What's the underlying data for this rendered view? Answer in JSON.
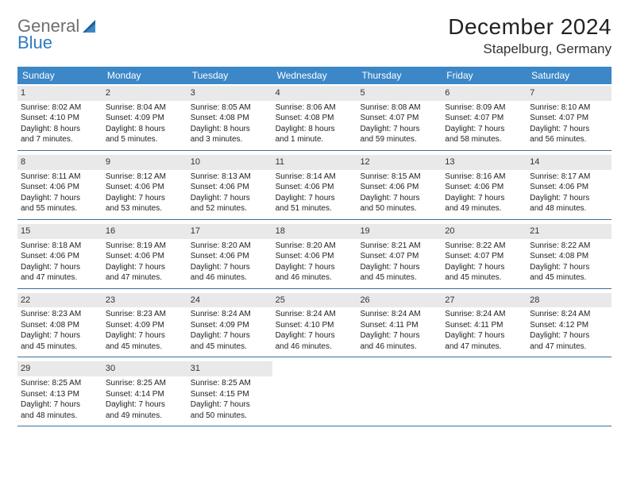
{
  "logo": {
    "text1": "General",
    "text2": "Blue"
  },
  "title": "December 2024",
  "location": "Stapelburg, Germany",
  "header_color": "#3b87c8",
  "rule_color": "#3b6f9e",
  "daynum_bg": "#e9e9e9",
  "weekdays": [
    "Sunday",
    "Monday",
    "Tuesday",
    "Wednesday",
    "Thursday",
    "Friday",
    "Saturday"
  ],
  "weeks": [
    [
      {
        "n": "1",
        "sr": "Sunrise: 8:02 AM",
        "ss": "Sunset: 4:10 PM",
        "d1": "Daylight: 8 hours",
        "d2": "and 7 minutes."
      },
      {
        "n": "2",
        "sr": "Sunrise: 8:04 AM",
        "ss": "Sunset: 4:09 PM",
        "d1": "Daylight: 8 hours",
        "d2": "and 5 minutes."
      },
      {
        "n": "3",
        "sr": "Sunrise: 8:05 AM",
        "ss": "Sunset: 4:08 PM",
        "d1": "Daylight: 8 hours",
        "d2": "and 3 minutes."
      },
      {
        "n": "4",
        "sr": "Sunrise: 8:06 AM",
        "ss": "Sunset: 4:08 PM",
        "d1": "Daylight: 8 hours",
        "d2": "and 1 minute."
      },
      {
        "n": "5",
        "sr": "Sunrise: 8:08 AM",
        "ss": "Sunset: 4:07 PM",
        "d1": "Daylight: 7 hours",
        "d2": "and 59 minutes."
      },
      {
        "n": "6",
        "sr": "Sunrise: 8:09 AM",
        "ss": "Sunset: 4:07 PM",
        "d1": "Daylight: 7 hours",
        "d2": "and 58 minutes."
      },
      {
        "n": "7",
        "sr": "Sunrise: 8:10 AM",
        "ss": "Sunset: 4:07 PM",
        "d1": "Daylight: 7 hours",
        "d2": "and 56 minutes."
      }
    ],
    [
      {
        "n": "8",
        "sr": "Sunrise: 8:11 AM",
        "ss": "Sunset: 4:06 PM",
        "d1": "Daylight: 7 hours",
        "d2": "and 55 minutes."
      },
      {
        "n": "9",
        "sr": "Sunrise: 8:12 AM",
        "ss": "Sunset: 4:06 PM",
        "d1": "Daylight: 7 hours",
        "d2": "and 53 minutes."
      },
      {
        "n": "10",
        "sr": "Sunrise: 8:13 AM",
        "ss": "Sunset: 4:06 PM",
        "d1": "Daylight: 7 hours",
        "d2": "and 52 minutes."
      },
      {
        "n": "11",
        "sr": "Sunrise: 8:14 AM",
        "ss": "Sunset: 4:06 PM",
        "d1": "Daylight: 7 hours",
        "d2": "and 51 minutes."
      },
      {
        "n": "12",
        "sr": "Sunrise: 8:15 AM",
        "ss": "Sunset: 4:06 PM",
        "d1": "Daylight: 7 hours",
        "d2": "and 50 minutes."
      },
      {
        "n": "13",
        "sr": "Sunrise: 8:16 AM",
        "ss": "Sunset: 4:06 PM",
        "d1": "Daylight: 7 hours",
        "d2": "and 49 minutes."
      },
      {
        "n": "14",
        "sr": "Sunrise: 8:17 AM",
        "ss": "Sunset: 4:06 PM",
        "d1": "Daylight: 7 hours",
        "d2": "and 48 minutes."
      }
    ],
    [
      {
        "n": "15",
        "sr": "Sunrise: 8:18 AM",
        "ss": "Sunset: 4:06 PM",
        "d1": "Daylight: 7 hours",
        "d2": "and 47 minutes."
      },
      {
        "n": "16",
        "sr": "Sunrise: 8:19 AM",
        "ss": "Sunset: 4:06 PM",
        "d1": "Daylight: 7 hours",
        "d2": "and 47 minutes."
      },
      {
        "n": "17",
        "sr": "Sunrise: 8:20 AM",
        "ss": "Sunset: 4:06 PM",
        "d1": "Daylight: 7 hours",
        "d2": "and 46 minutes."
      },
      {
        "n": "18",
        "sr": "Sunrise: 8:20 AM",
        "ss": "Sunset: 4:06 PM",
        "d1": "Daylight: 7 hours",
        "d2": "and 46 minutes."
      },
      {
        "n": "19",
        "sr": "Sunrise: 8:21 AM",
        "ss": "Sunset: 4:07 PM",
        "d1": "Daylight: 7 hours",
        "d2": "and 45 minutes."
      },
      {
        "n": "20",
        "sr": "Sunrise: 8:22 AM",
        "ss": "Sunset: 4:07 PM",
        "d1": "Daylight: 7 hours",
        "d2": "and 45 minutes."
      },
      {
        "n": "21",
        "sr": "Sunrise: 8:22 AM",
        "ss": "Sunset: 4:08 PM",
        "d1": "Daylight: 7 hours",
        "d2": "and 45 minutes."
      }
    ],
    [
      {
        "n": "22",
        "sr": "Sunrise: 8:23 AM",
        "ss": "Sunset: 4:08 PM",
        "d1": "Daylight: 7 hours",
        "d2": "and 45 minutes."
      },
      {
        "n": "23",
        "sr": "Sunrise: 8:23 AM",
        "ss": "Sunset: 4:09 PM",
        "d1": "Daylight: 7 hours",
        "d2": "and 45 minutes."
      },
      {
        "n": "24",
        "sr": "Sunrise: 8:24 AM",
        "ss": "Sunset: 4:09 PM",
        "d1": "Daylight: 7 hours",
        "d2": "and 45 minutes."
      },
      {
        "n": "25",
        "sr": "Sunrise: 8:24 AM",
        "ss": "Sunset: 4:10 PM",
        "d1": "Daylight: 7 hours",
        "d2": "and 46 minutes."
      },
      {
        "n": "26",
        "sr": "Sunrise: 8:24 AM",
        "ss": "Sunset: 4:11 PM",
        "d1": "Daylight: 7 hours",
        "d2": "and 46 minutes."
      },
      {
        "n": "27",
        "sr": "Sunrise: 8:24 AM",
        "ss": "Sunset: 4:11 PM",
        "d1": "Daylight: 7 hours",
        "d2": "and 47 minutes."
      },
      {
        "n": "28",
        "sr": "Sunrise: 8:24 AM",
        "ss": "Sunset: 4:12 PM",
        "d1": "Daylight: 7 hours",
        "d2": "and 47 minutes."
      }
    ],
    [
      {
        "n": "29",
        "sr": "Sunrise: 8:25 AM",
        "ss": "Sunset: 4:13 PM",
        "d1": "Daylight: 7 hours",
        "d2": "and 48 minutes."
      },
      {
        "n": "30",
        "sr": "Sunrise: 8:25 AM",
        "ss": "Sunset: 4:14 PM",
        "d1": "Daylight: 7 hours",
        "d2": "and 49 minutes."
      },
      {
        "n": "31",
        "sr": "Sunrise: 8:25 AM",
        "ss": "Sunset: 4:15 PM",
        "d1": "Daylight: 7 hours",
        "d2": "and 50 minutes."
      },
      {
        "empty": true
      },
      {
        "empty": true
      },
      {
        "empty": true
      },
      {
        "empty": true
      }
    ]
  ]
}
